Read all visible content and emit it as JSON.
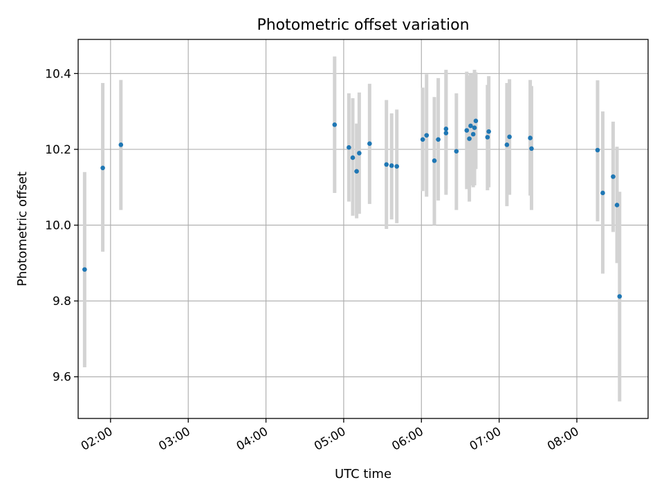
{
  "chart_data": {
    "type": "scatter",
    "title": "Photometric offset variation",
    "xlabel": "UTC time",
    "ylabel": "Photometric offset",
    "xlim": [
      "01:35",
      "08:55"
    ],
    "ylim": [
      9.49,
      10.49
    ],
    "x_ticks": [
      "02:00",
      "03:00",
      "04:00",
      "05:00",
      "06:00",
      "07:00",
      "08:00"
    ],
    "y_ticks": [
      9.6,
      9.8,
      10.0,
      10.2,
      10.4
    ],
    "y_tick_labels": [
      "9.6",
      "9.8",
      "10.0",
      "10.2",
      "10.4"
    ],
    "grid": true,
    "marker_color": "#1f77b4",
    "errorbar_color": "#d3d3d3",
    "points": [
      {
        "x": "01:40",
        "y": 9.883,
        "lo": 9.625,
        "hi": 10.14
      },
      {
        "x": "01:54",
        "y": 10.151,
        "lo": 9.93,
        "hi": 10.375
      },
      {
        "x": "02:08",
        "y": 10.212,
        "lo": 10.04,
        "hi": 10.383
      },
      {
        "x": "04:53",
        "y": 10.265,
        "lo": 10.085,
        "hi": 10.445
      },
      {
        "x": "05:04",
        "y": 10.205,
        "lo": 10.062,
        "hi": 10.348
      },
      {
        "x": "05:07",
        "y": 10.178,
        "lo": 10.025,
        "hi": 10.335
      },
      {
        "x": "05:10",
        "y": 10.142,
        "lo": 10.018,
        "hi": 10.268
      },
      {
        "x": "05:12",
        "y": 10.19,
        "lo": 10.03,
        "hi": 10.35
      },
      {
        "x": "05:20",
        "y": 10.215,
        "lo": 10.056,
        "hi": 10.373
      },
      {
        "x": "05:33",
        "y": 10.16,
        "lo": 9.99,
        "hi": 10.33
      },
      {
        "x": "05:37",
        "y": 10.157,
        "lo": 10.015,
        "hi": 10.295
      },
      {
        "x": "05:41",
        "y": 10.155,
        "lo": 10.005,
        "hi": 10.305
      },
      {
        "x": "06:01",
        "y": 10.226,
        "lo": 10.09,
        "hi": 10.363
      },
      {
        "x": "06:04",
        "y": 10.237,
        "lo": 10.075,
        "hi": 10.398
      },
      {
        "x": "06:10",
        "y": 10.17,
        "lo": 10.0,
        "hi": 10.338
      },
      {
        "x": "06:13",
        "y": 10.226,
        "lo": 10.065,
        "hi": 10.388
      },
      {
        "x": "06:19",
        "y": 10.254,
        "lo": 10.095,
        "hi": 10.41
      },
      {
        "x": "06:19",
        "y": 10.243,
        "lo": 10.08,
        "hi": 10.405
      },
      {
        "x": "06:27",
        "y": 10.195,
        "lo": 10.04,
        "hi": 10.348
      },
      {
        "x": "06:35",
        "y": 10.25,
        "lo": 10.095,
        "hi": 10.405
      },
      {
        "x": "06:37",
        "y": 10.228,
        "lo": 10.062,
        "hi": 10.395
      },
      {
        "x": "06:38",
        "y": 10.262,
        "lo": 10.105,
        "hi": 10.4
      },
      {
        "x": "06:40",
        "y": 10.24,
        "lo": 10.1,
        "hi": 10.4
      },
      {
        "x": "06:41",
        "y": 10.257,
        "lo": 10.105,
        "hi": 10.41
      },
      {
        "x": "06:42",
        "y": 10.275,
        "lo": 10.148,
        "hi": 10.403
      },
      {
        "x": "06:51",
        "y": 10.232,
        "lo": 10.092,
        "hi": 10.37
      },
      {
        "x": "06:52",
        "y": 10.247,
        "lo": 10.1,
        "hi": 10.393
      },
      {
        "x": "07:06",
        "y": 10.212,
        "lo": 10.05,
        "hi": 10.375
      },
      {
        "x": "07:08",
        "y": 10.233,
        "lo": 10.08,
        "hi": 10.385
      },
      {
        "x": "07:24",
        "y": 10.23,
        "lo": 10.078,
        "hi": 10.383
      },
      {
        "x": "07:25",
        "y": 10.202,
        "lo": 10.04,
        "hi": 10.367
      },
      {
        "x": "08:16",
        "y": 10.198,
        "lo": 10.01,
        "hi": 10.382
      },
      {
        "x": "08:20",
        "y": 10.085,
        "lo": 9.872,
        "hi": 10.3
      },
      {
        "x": "08:28",
        "y": 10.128,
        "lo": 9.982,
        "hi": 10.273
      },
      {
        "x": "08:31",
        "y": 10.053,
        "lo": 9.9,
        "hi": 10.207
      },
      {
        "x": "08:33",
        "y": 9.812,
        "lo": 9.535,
        "hi": 10.088
      }
    ]
  }
}
